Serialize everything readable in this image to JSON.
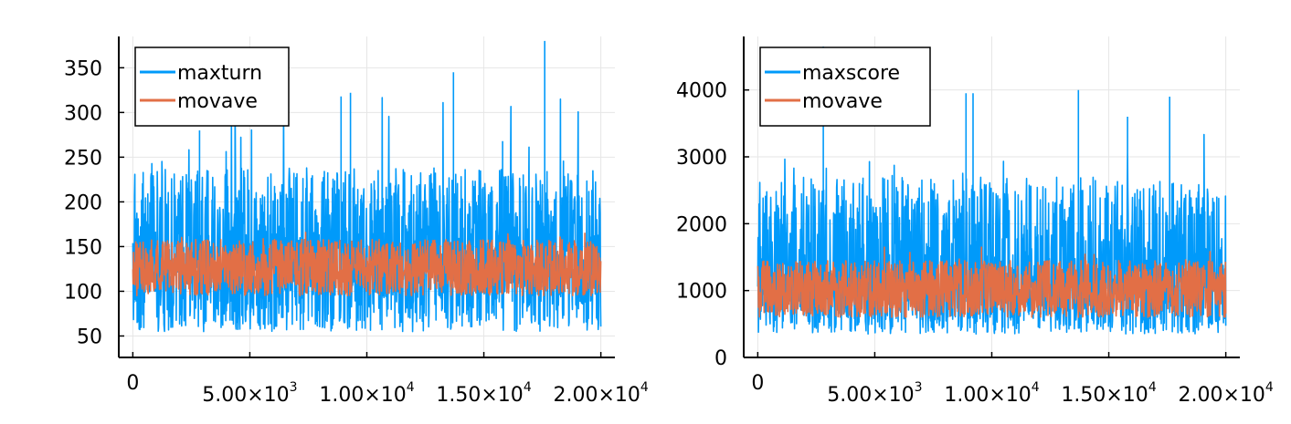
{
  "chart_data": [
    {
      "type": "line",
      "x_tick_labels": [
        {
          "value": 0,
          "text": "0",
          "base": "",
          "exp": ""
        },
        {
          "value": 5000,
          "text": "",
          "base": "5.00×10",
          "exp": "3"
        },
        {
          "value": 10000,
          "text": "",
          "base": "1.00×10",
          "exp": "4"
        },
        {
          "value": 15000,
          "text": "",
          "base": "1.50×10",
          "exp": "4"
        },
        {
          "value": 20000,
          "text": "",
          "base": "2.00×10",
          "exp": "4"
        }
      ],
      "y_ticks": [
        50,
        100,
        150,
        200,
        250,
        300,
        350
      ],
      "xlim": [
        -600,
        20600
      ],
      "ylim": [
        26,
        385
      ],
      "grid": true,
      "legend_position": "top-left",
      "series": [
        {
          "name": "maxturn",
          "color": "#009AFA",
          "center": 132,
          "low": 55,
          "high": 238,
          "spike_max": 380,
          "spikes": [
            [
              2850,
              280
            ],
            [
              8900,
              318
            ],
            [
              9300,
              322
            ],
            [
              13700,
              345
            ],
            [
              17600,
              380
            ],
            [
              15800,
              268
            ]
          ]
        },
        {
          "name": "movave",
          "color": "#E26F46",
          "center": 124,
          "low": 95,
          "high": 158,
          "spike_max": 183
        }
      ]
    },
    {
      "type": "line",
      "x_tick_labels": [
        {
          "value": 0,
          "text": "0",
          "base": "",
          "exp": ""
        },
        {
          "value": 5000,
          "text": "",
          "base": "5.00×10",
          "exp": "3"
        },
        {
          "value": 10000,
          "text": "",
          "base": "1.00×10",
          "exp": "4"
        },
        {
          "value": 15000,
          "text": "",
          "base": "1.50×10",
          "exp": "4"
        },
        {
          "value": 20000,
          "text": "",
          "base": "2.00×10",
          "exp": "4"
        }
      ],
      "y_ticks": [
        0,
        1000,
        2000,
        3000,
        4000
      ],
      "xlim": [
        -600,
        20600
      ],
      "ylim": [
        0,
        4800
      ],
      "grid": true,
      "legend_position": "top-left",
      "series": [
        {
          "name": "maxscore",
          "color": "#009AFA",
          "center": 1050,
          "low": 350,
          "high": 2700,
          "spike_max": 4650,
          "spikes": [
            [
              2800,
              4650
            ],
            [
              8900,
              3950
            ],
            [
              9200,
              3950
            ],
            [
              13700,
              4000
            ],
            [
              17600,
              3900
            ],
            [
              15800,
              3600
            ]
          ]
        },
        {
          "name": "movave",
          "color": "#E26F46",
          "center": 1000,
          "low": 600,
          "high": 1450,
          "spike_max": 1900
        }
      ]
    }
  ]
}
